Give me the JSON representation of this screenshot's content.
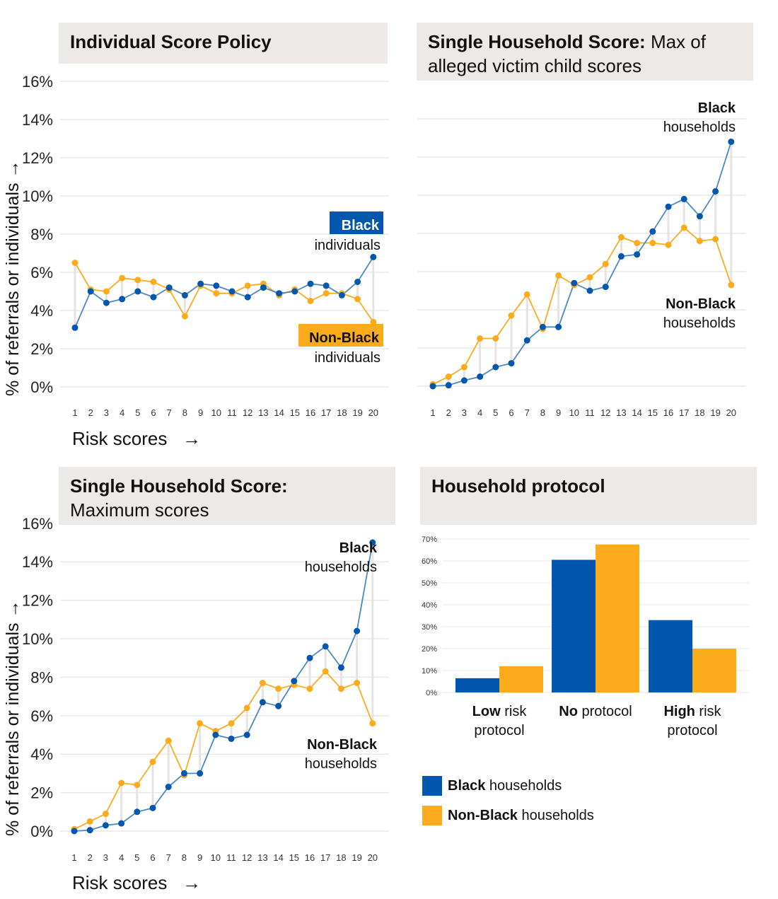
{
  "colors": {
    "black": "#0057ad",
    "nonblack": "#fcab1d",
    "grid": "#e8e8e8",
    "title_bg": "#ece9e6",
    "connector": "#e6e3e0"
  },
  "shared": {
    "ylabel": "% of referrals or individuals",
    "xlabel": "Risk scores",
    "arrow_up": "→",
    "arrow_right": "→"
  },
  "chart_data": [
    {
      "id": "individual",
      "type": "line",
      "title_bold": "Individual Score Policy",
      "title_rest": "",
      "x": [
        1,
        2,
        3,
        4,
        5,
        6,
        7,
        8,
        9,
        10,
        11,
        12,
        13,
        14,
        15,
        16,
        17,
        18,
        19,
        20
      ],
      "ylim": [
        0,
        16
      ],
      "yticks": [
        0,
        2,
        4,
        6,
        8,
        10,
        12,
        14,
        16
      ],
      "series": [
        {
          "name": "Black individuals",
          "values": [
            3.1,
            5.0,
            4.4,
            4.6,
            5.0,
            4.7,
            5.2,
            4.8,
            5.4,
            5.3,
            5.0,
            4.7,
            5.2,
            4.9,
            5.0,
            5.4,
            5.3,
            4.8,
            5.5,
            6.8
          ]
        },
        {
          "name": "Non-Black individuals",
          "values": [
            6.5,
            5.1,
            5.0,
            5.7,
            5.6,
            5.5,
            5.1,
            3.7,
            5.3,
            4.9,
            4.9,
            5.3,
            5.4,
            4.8,
            5.1,
            4.5,
            4.9,
            4.9,
            4.6,
            3.4
          ]
        }
      ],
      "annotations": {
        "black_bold": "Black",
        "black_rest": "individuals",
        "nonblack_bold": "Non-Black",
        "nonblack_rest": "individuals"
      }
    },
    {
      "id": "max_victim",
      "type": "line",
      "title_bold": "Single Household Score:",
      "title_rest": " Max of alleged victim child scores",
      "x": [
        1,
        2,
        3,
        4,
        5,
        6,
        7,
        8,
        9,
        10,
        11,
        12,
        13,
        14,
        15,
        16,
        17,
        18,
        19,
        20
      ],
      "ylim": [
        0,
        16
      ],
      "series": [
        {
          "name": "Black households",
          "values": [
            0.0,
            0.05,
            0.3,
            0.5,
            1.0,
            1.2,
            2.4,
            3.1,
            3.1,
            5.4,
            5.0,
            5.2,
            6.8,
            6.9,
            8.1,
            9.4,
            9.8,
            8.9,
            10.2,
            12.8
          ]
        },
        {
          "name": "Non-Black households",
          "values": [
            0.1,
            0.5,
            1.0,
            2.5,
            2.5,
            3.7,
            4.8,
            3.0,
            5.8,
            5.3,
            5.7,
            6.4,
            7.8,
            7.5,
            7.5,
            7.4,
            8.3,
            7.6,
            7.7,
            5.3
          ]
        }
      ],
      "annotations": {
        "black_bold": "Black",
        "black_rest": "households",
        "nonblack_bold": "Non-Black",
        "nonblack_rest": "households"
      }
    },
    {
      "id": "max_scores",
      "type": "line",
      "title_bold": "Single Household Score:",
      "title_rest": "Maximum scores",
      "x": [
        1,
        2,
        3,
        4,
        5,
        6,
        7,
        8,
        9,
        10,
        11,
        12,
        13,
        14,
        15,
        16,
        17,
        18,
        19,
        20
      ],
      "ylim": [
        0,
        16
      ],
      "yticks": [
        0,
        2,
        4,
        6,
        8,
        10,
        12,
        14,
        16
      ],
      "series": [
        {
          "name": "Black households",
          "values": [
            0.0,
            0.05,
            0.3,
            0.4,
            1.0,
            1.2,
            2.3,
            3.0,
            3.0,
            5.0,
            4.8,
            5.0,
            6.7,
            6.5,
            7.8,
            9.0,
            9.6,
            8.5,
            10.4,
            15.0
          ]
        },
        {
          "name": "Non-Black households",
          "values": [
            0.1,
            0.5,
            0.9,
            2.5,
            2.4,
            3.6,
            4.7,
            2.9,
            5.6,
            5.2,
            5.6,
            6.4,
            7.7,
            7.4,
            7.6,
            7.4,
            8.3,
            7.4,
            7.7,
            5.6
          ]
        }
      ],
      "annotations": {
        "black_bold": "Black",
        "black_rest": "households",
        "nonblack_bold": "Non-Black",
        "nonblack_rest": "households"
      }
    },
    {
      "id": "protocol",
      "type": "bar",
      "title_bold": "Household protocol",
      "title_rest": "",
      "categories": [
        {
          "bold": "Low",
          "rest": " risk",
          "line2": "protocol"
        },
        {
          "bold": "No",
          "rest": " protocol",
          "line2": ""
        },
        {
          "bold": "High",
          "rest": " risk",
          "line2": "protocol"
        }
      ],
      "ylim": [
        0,
        70
      ],
      "yticks": [
        0,
        10,
        20,
        30,
        40,
        50,
        60,
        70
      ],
      "series": [
        {
          "name": "Black households",
          "legend_bold": "Black",
          "legend_rest": " households",
          "values": [
            6.5,
            60.5,
            33.0
          ]
        },
        {
          "name": "Non-Black households",
          "legend_bold": "Non-Black",
          "legend_rest": " households",
          "values": [
            12.0,
            67.5,
            20.0
          ]
        }
      ]
    }
  ]
}
